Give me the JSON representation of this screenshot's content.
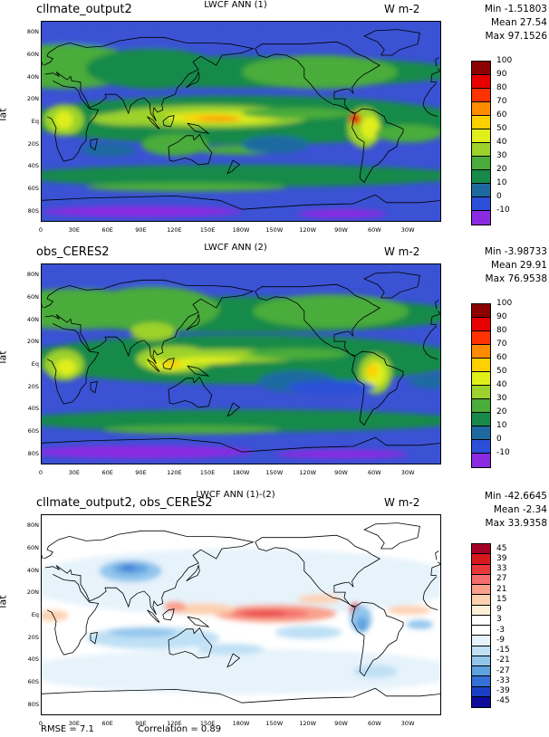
{
  "panels": [
    {
      "title_left": "cllmate_output2",
      "title_center": "LWCF ANN (1)",
      "units": "W m-2",
      "stats": {
        "min": "Min -1.51803",
        "mean": "Mean 27.54",
        "max": "Max 97.1526"
      },
      "ylabel": "lat",
      "colorbar": {
        "labels": [
          "100",
          "90",
          "80",
          "70",
          "60",
          "50",
          "40",
          "30",
          "20",
          "10",
          "0",
          "-10"
        ],
        "colors": [
          "#8b0000",
          "#e60000",
          "#ff3200",
          "#ff8c00",
          "#ffd000",
          "#e0ef1a",
          "#9cd22b",
          "#4aac3a",
          "#178a4a",
          "#1e6aa0",
          "#2b4fd8",
          "#8a2be2"
        ]
      }
    },
    {
      "title_left": "obs_CERES2",
      "title_center": "LWCF ANN (2)",
      "units": "W m-2",
      "stats": {
        "min": "Min -3.98733",
        "mean": "Mean 29.91",
        "max": "Max 76.9538"
      },
      "ylabel": "lat",
      "colorbar": {
        "labels": [
          "100",
          "90",
          "80",
          "70",
          "60",
          "50",
          "40",
          "30",
          "20",
          "10",
          "0",
          "-10"
        ],
        "colors": [
          "#8b0000",
          "#e60000",
          "#ff3200",
          "#ff8c00",
          "#ffd000",
          "#e0ef1a",
          "#9cd22b",
          "#4aac3a",
          "#178a4a",
          "#1e6aa0",
          "#2b4fd8",
          "#8a2be2"
        ]
      }
    },
    {
      "title_left": "cllmate_output2, obs_CERES2",
      "title_center": "LWCF ANN (1)-(2)",
      "units": "W m-2",
      "stats": {
        "min": "Min -42.6645",
        "mean": "Mean -2.34",
        "max": "Max 33.9358"
      },
      "ylabel": "lat",
      "colorbar": {
        "labels": [
          "45",
          "39",
          "33",
          "27",
          "21",
          "15",
          "9",
          "3",
          "-3",
          "-9",
          "-15",
          "-21",
          "-27",
          "-33",
          "-39",
          "-45"
        ],
        "colors": [
          "#a50026",
          "#d7191c",
          "#e8383a",
          "#f46d6d",
          "#f9a08a",
          "#fdd0b0",
          "#fef0d8",
          "#ffffff",
          "#ffffff",
          "#e6f3fb",
          "#bfe0f5",
          "#92c5ec",
          "#5fa2e0",
          "#3470d6",
          "#1a3fc4",
          "#0d0d99"
        ]
      }
    }
  ],
  "axes": {
    "lat_ticks": [
      "80N",
      "60N",
      "40N",
      "20N",
      "Eq",
      "20S",
      "40S",
      "60S",
      "80S"
    ],
    "lon_ticks": [
      "0",
      "30E",
      "60E",
      "90E",
      "120E",
      "150E",
      "180W",
      "150W",
      "120W",
      "90W",
      "60W",
      "30W"
    ]
  },
  "footer": {
    "rmse": "RMSE = 7.1",
    "correlation": "Correlation = 0.89"
  },
  "colors": {
    "ocean_base_1": "#3a52d3",
    "ocean_base_2": "#3a52d3",
    "diff_base": "#ffffff",
    "coastline": "#000000"
  }
}
